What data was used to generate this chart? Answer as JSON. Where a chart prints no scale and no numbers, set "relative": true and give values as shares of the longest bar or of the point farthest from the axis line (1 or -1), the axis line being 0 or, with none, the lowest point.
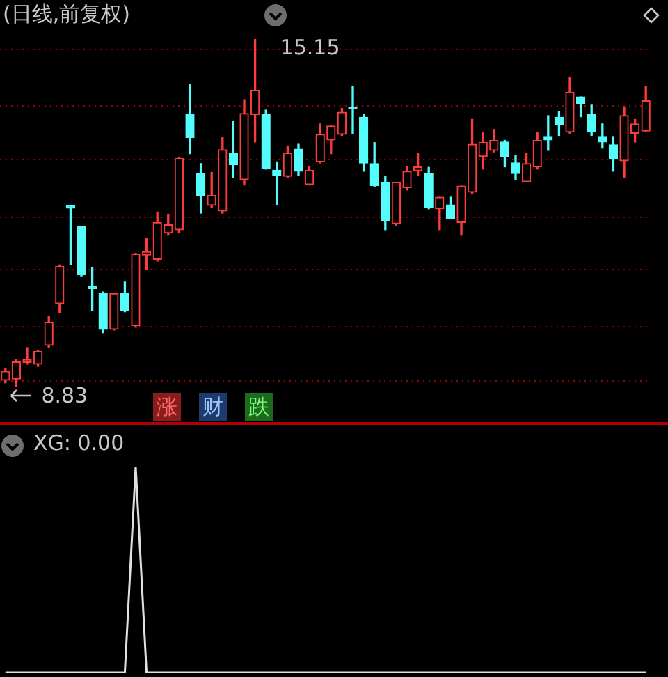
{
  "chart_data": [
    {
      "type": "candlestick",
      "title": "(日线,前复权)",
      "categories": [
        null,
        null,
        null,
        null,
        null,
        null,
        null,
        null,
        null,
        null,
        null,
        null,
        null,
        null,
        null,
        null,
        null,
        null,
        null,
        null,
        null,
        null,
        null,
        null,
        null,
        null,
        null,
        null,
        null,
        null,
        null,
        null,
        null,
        null,
        null,
        null,
        null,
        null,
        null,
        null,
        null,
        null,
        null,
        null,
        null,
        null,
        null,
        null,
        null,
        null,
        null,
        null,
        null,
        null,
        null,
        null,
        null,
        null,
        null,
        null
      ],
      "ohlc": [
        [
          8.96,
          9.17,
          8.91,
          9.12
        ],
        [
          8.98,
          9.33,
          8.83,
          9.29
        ],
        [
          9.28,
          9.55,
          9.25,
          9.33
        ],
        [
          9.25,
          9.5,
          9.21,
          9.48
        ],
        [
          9.59,
          10.12,
          9.55,
          10.01
        ],
        [
          10.35,
          11.05,
          10.18,
          11.02
        ],
        [
          12.12,
          12.13,
          11.06,
          12.08
        ],
        [
          11.75,
          11.75,
          10.85,
          10.87
        ],
        [
          10.66,
          11.0,
          10.22,
          10.62
        ],
        [
          10.53,
          10.56,
          9.82,
          9.88
        ],
        [
          9.88,
          10.54,
          9.87,
          10.53
        ],
        [
          10.53,
          10.74,
          10.2,
          10.22
        ],
        [
          9.95,
          11.26,
          9.92,
          11.25
        ],
        [
          11.23,
          11.53,
          10.96,
          11.29
        ],
        [
          11.15,
          12.01,
          11.12,
          11.82
        ],
        [
          11.63,
          11.97,
          11.59,
          11.78
        ],
        [
          11.69,
          13.0,
          11.63,
          12.98
        ],
        [
          13.78,
          14.33,
          13.07,
          13.36
        ],
        [
          12.71,
          12.89,
          11.99,
          12.31
        ],
        [
          12.13,
          12.73,
          12.09,
          12.31
        ],
        [
          12.03,
          13.36,
          11.99,
          13.14
        ],
        [
          13.08,
          13.65,
          12.64,
          12.87
        ],
        [
          12.6,
          14.05,
          12.5,
          13.8
        ],
        [
          13.78,
          15.15,
          13.28,
          14.22
        ],
        [
          13.78,
          13.86,
          12.79,
          12.79
        ],
        [
          12.77,
          12.92,
          12.14,
          12.68
        ],
        [
          12.66,
          13.21,
          12.64,
          13.08
        ],
        [
          13.15,
          13.24,
          12.68,
          12.75
        ],
        [
          12.51,
          12.83,
          12.5,
          12.77
        ],
        [
          12.92,
          13.61,
          12.9,
          13.42
        ],
        [
          13.32,
          13.57,
          13.07,
          13.57
        ],
        [
          13.42,
          13.89,
          13.4,
          13.82
        ],
        [
          13.91,
          14.29,
          13.44,
          13.89
        ],
        [
          13.73,
          13.78,
          12.75,
          12.9
        ],
        [
          12.89,
          13.27,
          12.48,
          12.49
        ],
        [
          12.55,
          12.66,
          11.69,
          11.85
        ],
        [
          11.8,
          12.55,
          11.76,
          12.55
        ],
        [
          12.45,
          12.83,
          12.41,
          12.75
        ],
        [
          12.76,
          13.08,
          12.68,
          12.83
        ],
        [
          12.71,
          12.82,
          12.07,
          12.1
        ],
        [
          12.07,
          12.28,
          11.69,
          12.28
        ],
        [
          12.14,
          12.28,
          11.89,
          11.89
        ],
        [
          11.82,
          12.48,
          11.59,
          12.48
        ],
        [
          12.37,
          13.69,
          12.34,
          13.24
        ],
        [
          13.02,
          13.46,
          12.79,
          13.27
        ],
        [
          13.13,
          13.51,
          13.1,
          13.31
        ],
        [
          13.28,
          13.31,
          12.83,
          13.02
        ],
        [
          12.9,
          13.04,
          12.6,
          12.71
        ],
        [
          12.56,
          13.08,
          12.56,
          12.89
        ],
        [
          12.83,
          13.46,
          12.79,
          13.31
        ],
        [
          13.38,
          13.76,
          13.13,
          13.32
        ],
        [
          13.73,
          13.84,
          13.4,
          13.59
        ],
        [
          13.46,
          14.45,
          13.44,
          14.18
        ],
        [
          14.1,
          14.1,
          13.74,
          13.97
        ],
        [
          13.78,
          13.95,
          13.4,
          13.46
        ],
        [
          13.38,
          13.61,
          13.17,
          13.28
        ],
        [
          13.23,
          13.38,
          12.75,
          12.97
        ],
        [
          12.94,
          13.91,
          12.64,
          13.76
        ],
        [
          13.44,
          13.69,
          13.28,
          13.61
        ],
        [
          13.48,
          14.29,
          13.48,
          14.03
        ]
      ],
      "colors": [
        "#ff3c3c",
        "#ff3c3c",
        "#ff3c3c",
        "#ff3c3c",
        "#ff3c3c",
        "#ff3c3c",
        "#54fcfc",
        "#54fcfc",
        "#54fcfc",
        "#54fcfc",
        "#ff3c3c",
        "#54fcfc",
        "#ff3c3c",
        "#ff3c3c",
        "#ff3c3c",
        "#ff3c3c",
        "#ff3c3c",
        "#54fcfc",
        "#54fcfc",
        "#ff3c3c",
        "#ff3c3c",
        "#54fcfc",
        "#ff3c3c",
        "#ff3c3c",
        "#54fcfc",
        "#54fcfc",
        "#ff3c3c",
        "#54fcfc",
        "#ff3c3c",
        "#ff3c3c",
        "#ff3c3c",
        "#ff3c3c",
        "#54fcfc",
        "#54fcfc",
        "#54fcfc",
        "#54fcfc",
        "#ff3c3c",
        "#ff3c3c",
        "#ff3c3c",
        "#54fcfc",
        "#ff3c3c",
        "#54fcfc",
        "#ff3c3c",
        "#ff3c3c",
        "#ff3c3c",
        "#ff3c3c",
        "#54fcfc",
        "#54fcfc",
        "#ff3c3c",
        "#ff3c3c",
        "#54fcfc",
        "#54fcfc",
        "#ff3c3c",
        "#54fcfc",
        "#54fcfc",
        "#54fcfc",
        "#54fcfc",
        "#ff3c3c",
        "#ff3c3c",
        "#ff3c3c"
      ],
      "grid": "y",
      "yticks": [
        {
          "value": 8.94,
          "label": null
        },
        {
          "value": 9.93,
          "label": null
        },
        {
          "value": 10.96,
          "label": null
        },
        {
          "value": 11.92,
          "label": null
        },
        {
          "value": 12.96,
          "label": null
        },
        {
          "value": 13.94,
          "label": null
        },
        {
          "value": 14.96,
          "label": null
        }
      ],
      "annotations": [
        "15.15",
        "8.83",
        "涨",
        "财",
        "跌"
      ]
    },
    {
      "type": "line",
      "title": "XG: 0.00",
      "relative": true,
      "categories": [
        null,
        null,
        null,
        null,
        null,
        null,
        null,
        null,
        null,
        null,
        null,
        null,
        null,
        null,
        null,
        null,
        null,
        null,
        null,
        null,
        null,
        null,
        null,
        null,
        null,
        null,
        null,
        null,
        null,
        null,
        null,
        null,
        null,
        null,
        null,
        null,
        null,
        null,
        null,
        null,
        null,
        null,
        null,
        null,
        null,
        null,
        null,
        null,
        null,
        null,
        null,
        null,
        null,
        null,
        null,
        null,
        null,
        null,
        null,
        null
      ],
      "series": [
        {
          "color": "#e0e0e0",
          "values": [
            0,
            0,
            0,
            0,
            0,
            0,
            0,
            0,
            0,
            0,
            0,
            0,
            1,
            0,
            0,
            0,
            0,
            0,
            0,
            0,
            0,
            0,
            0,
            0,
            0,
            0,
            0,
            0,
            0,
            0,
            0,
            0,
            0,
            0,
            0,
            0,
            0,
            0,
            0,
            0,
            0,
            0,
            0,
            0,
            0,
            0,
            0,
            0,
            0,
            0,
            0,
            0,
            0,
            0,
            0,
            0,
            0,
            0,
            0,
            0
          ]
        }
      ]
    }
  ]
}
